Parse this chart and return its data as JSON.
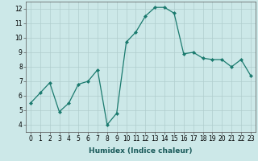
{
  "x": [
    0,
    1,
    2,
    3,
    4,
    5,
    6,
    7,
    8,
    9,
    10,
    11,
    12,
    13,
    14,
    15,
    16,
    17,
    18,
    19,
    20,
    21,
    22,
    23
  ],
  "y": [
    5.5,
    6.2,
    6.9,
    4.9,
    5.5,
    6.8,
    7.0,
    7.8,
    4.0,
    4.8,
    9.7,
    10.4,
    11.5,
    12.1,
    12.1,
    11.7,
    8.9,
    9.0,
    8.6,
    8.5,
    8.5,
    8.0,
    8.5,
    7.4
  ],
  "line_color": "#1a7a6e",
  "marker": "D",
  "marker_size": 2.0,
  "bg_color": "#cce8e8",
  "grid_color": "#b0cdcd",
  "xlabel": "Humidex (Indice chaleur)",
  "xlim": [
    -0.5,
    23.5
  ],
  "ylim": [
    3.5,
    12.5
  ],
  "yticks": [
    4,
    5,
    6,
    7,
    8,
    9,
    10,
    11,
    12
  ],
  "xticks": [
    0,
    1,
    2,
    3,
    4,
    5,
    6,
    7,
    8,
    9,
    10,
    11,
    12,
    13,
    14,
    15,
    16,
    17,
    18,
    19,
    20,
    21,
    22,
    23
  ],
  "xlabel_fontsize": 6.5,
  "tick_fontsize": 5.5,
  "linewidth": 0.9,
  "spine_color": "#555555"
}
